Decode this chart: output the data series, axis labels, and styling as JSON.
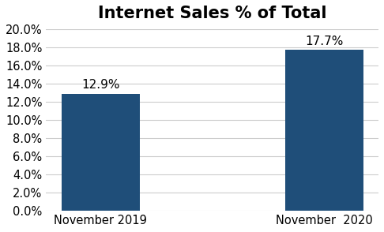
{
  "title": "Internet Sales % of Total",
  "categories": [
    "November 2019",
    "November  2020"
  ],
  "values": [
    12.9,
    17.7
  ],
  "bar_color": "#1F4E79",
  "ylim": [
    0,
    20
  ],
  "ytick_step": 2,
  "background_color": "#ffffff",
  "title_fontsize": 15,
  "label_fontsize": 10.5,
  "annotation_fontsize": 11,
  "bar_width": 0.35
}
